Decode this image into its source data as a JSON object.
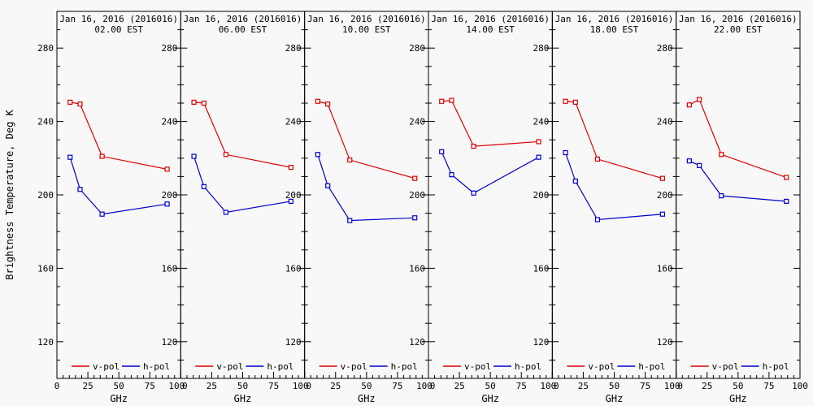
{
  "figure": {
    "background": "#f8f8f8",
    "foreground": "#000000",
    "y_axis_title": "Brightness Temperature, Deg K",
    "x_axis_title": "GHz",
    "legend": [
      {
        "label": "v-pol",
        "color": "#dd0000"
      },
      {
        "label": "h-pol",
        "color": "#0000cc"
      }
    ]
  },
  "chart_data": [
    {
      "type": "line",
      "title": "Jan 16, 2016 (2016016)",
      "subtitle": "02.00 EST",
      "xlabel": "GHz",
      "ylabel": "Brightness Temperature, Deg K",
      "x": [
        10.65,
        18.7,
        36.5,
        89
      ],
      "xlim": [
        0,
        100
      ],
      "ylim": [
        100,
        300
      ],
      "xticks": [
        0,
        25,
        50,
        75,
        100
      ],
      "yticks": [
        120,
        160,
        200,
        240,
        280
      ],
      "series": [
        {
          "name": "v-pol",
          "color": "#dd0000",
          "values": [
            250.5,
            249.5,
            221,
            214
          ]
        },
        {
          "name": "h-pol",
          "color": "#0000cc",
          "values": [
            220.5,
            203,
            189.5,
            195
          ]
        }
      ]
    },
    {
      "type": "line",
      "title": "Jan 16, 2016 (2016016)",
      "subtitle": "06.00 EST",
      "xlabel": "GHz",
      "x": [
        10.65,
        18.7,
        36.5,
        89
      ],
      "xlim": [
        0,
        100
      ],
      "ylim": [
        100,
        300
      ],
      "xticks": [
        0,
        25,
        50,
        75,
        100
      ],
      "yticks": [
        120,
        160,
        200,
        240,
        280
      ],
      "series": [
        {
          "name": "v-pol",
          "color": "#dd0000",
          "values": [
            250.5,
            250,
            222,
            215
          ]
        },
        {
          "name": "h-pol",
          "color": "#0000cc",
          "values": [
            221,
            204.5,
            190.5,
            196.5
          ]
        }
      ]
    },
    {
      "type": "line",
      "title": "Jan 16, 2016 (2016016)",
      "subtitle": "10.00 EST",
      "xlabel": "GHz",
      "x": [
        10.65,
        18.7,
        36.5,
        89
      ],
      "xlim": [
        0,
        100
      ],
      "ylim": [
        100,
        300
      ],
      "xticks": [
        0,
        25,
        50,
        75,
        100
      ],
      "yticks": [
        120,
        160,
        200,
        240,
        280
      ],
      "series": [
        {
          "name": "v-pol",
          "color": "#dd0000",
          "values": [
            251,
            249.5,
            219,
            209
          ]
        },
        {
          "name": "h-pol",
          "color": "#0000cc",
          "values": [
            222,
            205,
            186,
            187.5
          ]
        }
      ]
    },
    {
      "type": "line",
      "title": "Jan 16, 2016 (2016016)",
      "subtitle": "14.00 EST",
      "xlabel": "GHz",
      "x": [
        10.65,
        18.7,
        36.5,
        89
      ],
      "xlim": [
        0,
        100
      ],
      "ylim": [
        100,
        300
      ],
      "xticks": [
        0,
        25,
        50,
        75,
        100
      ],
      "yticks": [
        120,
        160,
        200,
        240,
        280
      ],
      "series": [
        {
          "name": "v-pol",
          "color": "#dd0000",
          "values": [
            251,
            251.5,
            226.5,
            229
          ]
        },
        {
          "name": "h-pol",
          "color": "#0000cc",
          "values": [
            223.5,
            211,
            201,
            220.5
          ]
        }
      ]
    },
    {
      "type": "line",
      "title": "Jan 16, 2016 (2016016)",
      "subtitle": "18.00 EST",
      "xlabel": "GHz",
      "x": [
        10.65,
        18.7,
        36.5,
        89
      ],
      "xlim": [
        0,
        100
      ],
      "ylim": [
        100,
        300
      ],
      "xticks": [
        0,
        25,
        50,
        75,
        100
      ],
      "yticks": [
        120,
        160,
        200,
        240,
        280
      ],
      "series": [
        {
          "name": "v-pol",
          "color": "#dd0000",
          "values": [
            251,
            250.5,
            219.5,
            209
          ]
        },
        {
          "name": "h-pol",
          "color": "#0000cc",
          "values": [
            223,
            207.5,
            186.5,
            189.5
          ]
        }
      ]
    },
    {
      "type": "line",
      "title": "Jan 16, 2016 (2016016)",
      "subtitle": "22.00 EST",
      "xlabel": "GHz",
      "x": [
        10.65,
        18.7,
        36.5,
        89
      ],
      "xlim": [
        0,
        100
      ],
      "ylim": [
        100,
        300
      ],
      "xticks": [
        0,
        25,
        50,
        75,
        100
      ],
      "yticks": [
        120,
        160,
        200,
        240,
        280
      ],
      "series": [
        {
          "name": "v-pol",
          "color": "#dd0000",
          "values": [
            249,
            252,
            222,
            209.5
          ]
        },
        {
          "name": "h-pol",
          "color": "#0000cc",
          "values": [
            218.5,
            216,
            199.5,
            196.5
          ]
        }
      ]
    }
  ]
}
